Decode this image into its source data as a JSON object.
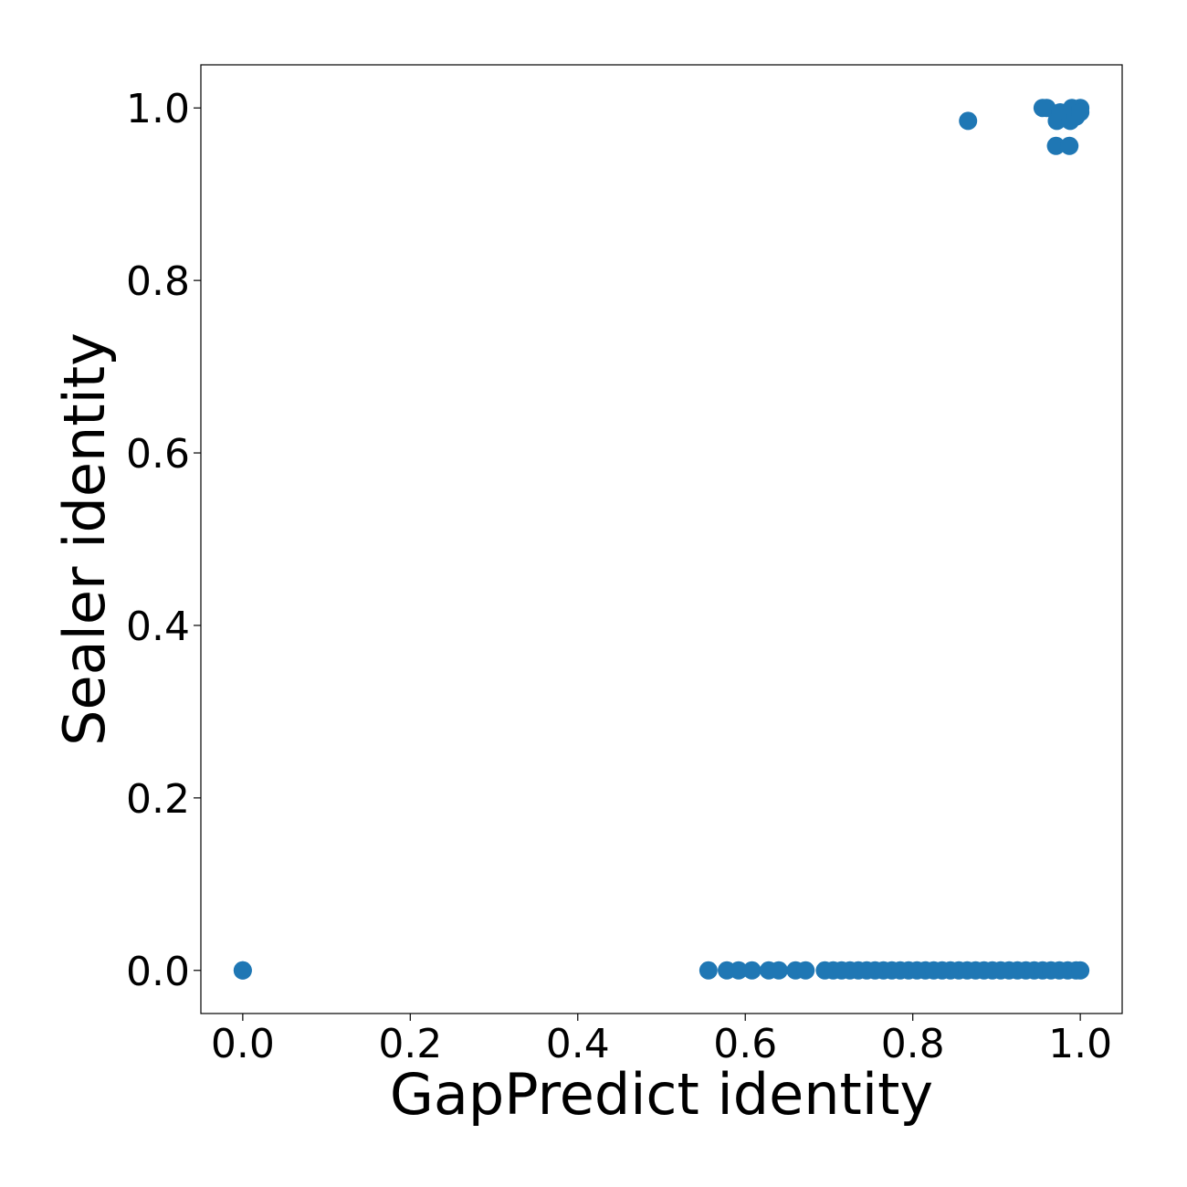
{
  "chart_data": {
    "type": "scatter",
    "title": "",
    "xlabel": "GapPredict identity",
    "ylabel": "Sealer identity",
    "xlim": [
      -0.05,
      1.05
    ],
    "ylim": [
      -0.05,
      1.05
    ],
    "xticks": [
      0.0,
      0.2,
      0.4,
      0.6,
      0.8,
      1.0
    ],
    "yticks": [
      0.0,
      0.2,
      0.4,
      0.6,
      0.8,
      1.0
    ],
    "xtick_labels": [
      "0.0",
      "0.2",
      "0.4",
      "0.6",
      "0.8",
      "1.0"
    ],
    "ytick_labels": [
      "0.0",
      "0.2",
      "0.4",
      "0.6",
      "0.8",
      "1.0"
    ],
    "grid": false,
    "marker_color": "#1f77b4",
    "series": [
      {
        "points": [
          [
            0.0,
            0.0
          ],
          [
            0.0,
            0.0
          ],
          [
            0.556,
            0.0
          ],
          [
            0.578,
            0.0
          ],
          [
            0.592,
            0.0
          ],
          [
            0.608,
            0.0
          ],
          [
            0.628,
            0.0
          ],
          [
            0.64,
            0.0
          ],
          [
            0.66,
            0.0
          ],
          [
            0.672,
            0.0
          ],
          [
            0.695,
            0.0
          ],
          [
            0.705,
            0.0
          ],
          [
            0.715,
            0.0
          ],
          [
            0.725,
            0.0
          ],
          [
            0.735,
            0.0
          ],
          [
            0.745,
            0.0
          ],
          [
            0.755,
            0.0
          ],
          [
            0.765,
            0.0
          ],
          [
            0.775,
            0.0
          ],
          [
            0.785,
            0.0
          ],
          [
            0.795,
            0.0
          ],
          [
            0.805,
            0.0
          ],
          [
            0.815,
            0.0
          ],
          [
            0.825,
            0.0
          ],
          [
            0.835,
            0.0
          ],
          [
            0.845,
            0.0
          ],
          [
            0.855,
            0.0
          ],
          [
            0.865,
            0.0
          ],
          [
            0.875,
            0.0
          ],
          [
            0.885,
            0.0
          ],
          [
            0.895,
            0.0
          ],
          [
            0.905,
            0.0
          ],
          [
            0.915,
            0.0
          ],
          [
            0.925,
            0.0
          ],
          [
            0.935,
            0.0
          ],
          [
            0.945,
            0.0
          ],
          [
            0.955,
            0.0
          ],
          [
            0.965,
            0.0
          ],
          [
            0.975,
            0.0
          ],
          [
            0.985,
            0.0
          ],
          [
            0.995,
            0.0
          ],
          [
            1.0,
            0.0
          ],
          [
            0.866,
            0.985
          ],
          [
            0.955,
            1.0
          ],
          [
            0.96,
            1.0
          ],
          [
            0.972,
            0.985
          ],
          [
            0.976,
            0.995
          ],
          [
            0.988,
            0.985
          ],
          [
            0.99,
            1.0
          ],
          [
            0.995,
            0.99
          ],
          [
            1.0,
            1.0
          ],
          [
            1.0,
            0.995
          ],
          [
            0.971,
            0.956
          ],
          [
            0.987,
            0.956
          ]
        ]
      }
    ]
  }
}
